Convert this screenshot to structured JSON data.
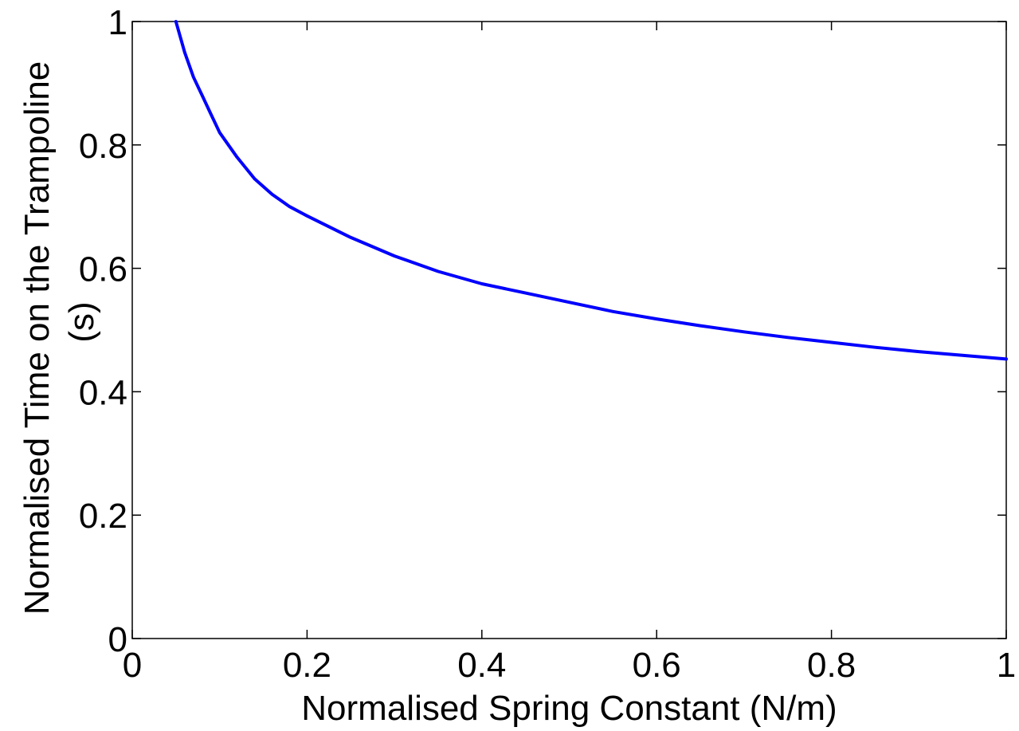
{
  "chart_data": {
    "type": "line",
    "title": "",
    "xlabel": "Normalised Spring Constant (N/m)",
    "ylabel_line1": "Normalised Time on the Trampoline",
    "ylabel_line2": "(s)",
    "xlim": [
      0,
      1
    ],
    "ylim": [
      0,
      1
    ],
    "x_ticks": [
      0,
      0.2,
      0.4,
      0.6,
      0.8,
      1
    ],
    "x_tick_labels": [
      "0",
      "0.2",
      "0.4",
      "0.6",
      "0.8",
      "1"
    ],
    "y_ticks": [
      0,
      0.2,
      0.4,
      0.6,
      0.8,
      1
    ],
    "y_tick_labels": [
      "0",
      "0.2",
      "0.4",
      "0.6",
      "0.8",
      "1"
    ],
    "grid": false,
    "line_color": "#0000ff",
    "series": [
      {
        "x": [
          0.05,
          0.06,
          0.07,
          0.08,
          0.09,
          0.1,
          0.12,
          0.14,
          0.16,
          0.18,
          0.2,
          0.25,
          0.3,
          0.35,
          0.4,
          0.45,
          0.5,
          0.55,
          0.6,
          0.65,
          0.7,
          0.75,
          0.8,
          0.85,
          0.9,
          0.95,
          1.0
        ],
        "y": [
          1.0,
          0.95,
          0.91,
          0.88,
          0.85,
          0.82,
          0.78,
          0.745,
          0.72,
          0.7,
          0.685,
          0.65,
          0.62,
          0.595,
          0.575,
          0.56,
          0.545,
          0.53,
          0.518,
          0.507,
          0.497,
          0.488,
          0.48,
          0.472,
          0.465,
          0.459,
          0.453
        ]
      }
    ]
  }
}
